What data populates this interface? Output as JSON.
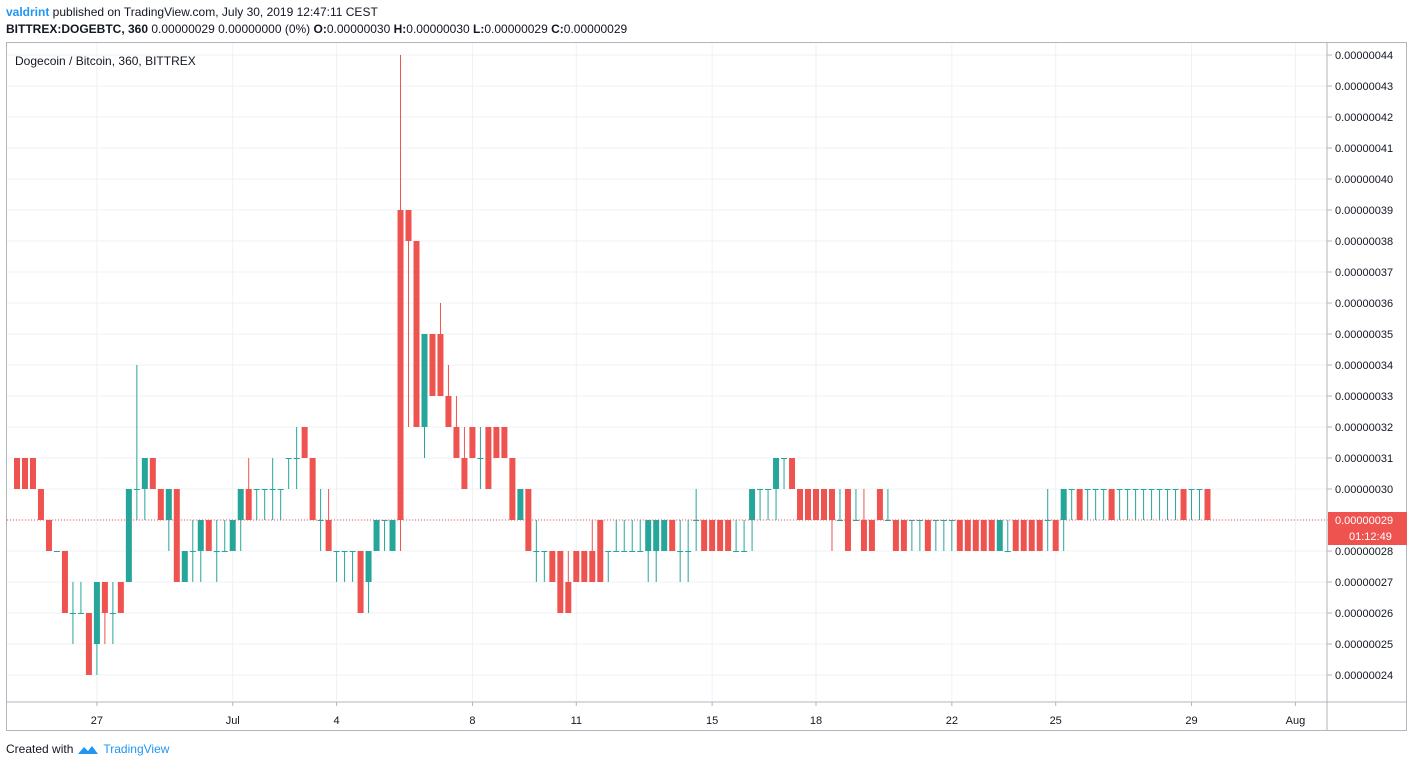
{
  "header": {
    "author": "valdrint",
    "published_text": " published on TradingView.com, July 30, 2019 12:47:11 CEST",
    "symbol": "BITTREX:DOGEBTC, 360",
    "quote_text": "0.00000029 0.00000000 (0%)",
    "open_label": "O:",
    "open": "0.00000030",
    "high_label": "H:",
    "high": "0.00000030",
    "low_label": "L:",
    "low": "0.00000029",
    "close_label": "C:",
    "close": "0.00000029"
  },
  "footer": {
    "created_with": "Created with",
    "brand": "TradingView"
  },
  "colors": {
    "up": "#26a69a",
    "down": "#ef5350",
    "grid": "#eef1f5",
    "axis_text": "#131722",
    "last_price": "#ef5350"
  },
  "chart_data": {
    "type": "candlestick",
    "title": "Dogecoin / Bitcoin, 360, BITTREX",
    "y_unit_scale": 1e-08,
    "ylim": [
      23.2,
      44.5
    ],
    "y_ticks": [
      24,
      25,
      26,
      27,
      28,
      29,
      30,
      31,
      32,
      33,
      34,
      35,
      36,
      37,
      38,
      39,
      40,
      41,
      42,
      43,
      44
    ],
    "y_tick_labels": [
      "0.00000024",
      "0.00000025",
      "0.00000026",
      "0.00000027",
      "0.00000028",
      "0.00000029",
      "0.00000030",
      "0.00000031",
      "0.00000032",
      "0.00000033",
      "0.00000034",
      "0.00000035",
      "0.00000036",
      "0.00000037",
      "0.00000038",
      "0.00000039",
      "0.00000040",
      "0.00000041",
      "0.00000042",
      "0.00000043",
      "0.00000044"
    ],
    "x_tick_labels": [
      "27",
      "Jul",
      "4",
      "8",
      "11",
      "15",
      "18",
      "22",
      "25",
      "29",
      "Aug"
    ],
    "x_tick_index": [
      10,
      27,
      40,
      57,
      70,
      87,
      100,
      117,
      130,
      147,
      160
    ],
    "candles": [
      [
        31,
        31,
        30,
        30
      ],
      [
        31,
        31,
        30,
        30
      ],
      [
        31,
        31,
        30,
        30
      ],
      [
        30,
        30,
        29,
        29
      ],
      [
        29,
        29,
        28,
        28
      ],
      [
        28,
        28,
        28,
        28
      ],
      [
        28,
        28,
        26,
        26
      ],
      [
        26,
        27,
        25,
        26
      ],
      [
        26,
        27,
        26,
        26
      ],
      [
        26,
        26,
        24,
        24
      ],
      [
        25,
        27,
        24,
        27
      ],
      [
        27,
        27,
        25,
        26
      ],
      [
        26,
        27,
        25,
        26
      ],
      [
        27,
        27,
        26,
        26
      ],
      [
        27,
        30,
        27,
        30
      ],
      [
        30,
        34,
        29,
        30
      ],
      [
        30,
        31,
        29,
        31
      ],
      [
        31,
        31,
        30,
        30
      ],
      [
        30,
        30,
        29,
        29
      ],
      [
        29,
        30,
        28,
        30
      ],
      [
        30,
        30,
        27,
        27
      ],
      [
        27,
        28,
        27,
        28
      ],
      [
        28,
        29,
        27,
        28
      ],
      [
        28,
        29,
        27,
        29
      ],
      [
        29,
        29,
        28,
        28
      ],
      [
        28,
        29,
        27,
        28
      ],
      [
        28,
        29,
        28,
        28
      ],
      [
        28,
        29,
        28,
        29
      ],
      [
        29,
        30,
        28,
        30
      ],
      [
        30,
        31,
        29,
        29
      ],
      [
        30,
        30,
        29,
        30
      ],
      [
        30,
        30,
        29,
        30
      ],
      [
        30,
        31,
        29,
        30
      ],
      [
        30,
        30,
        29,
        30
      ],
      [
        31,
        31,
        30,
        31
      ],
      [
        31,
        32,
        30,
        31
      ],
      [
        32,
        32,
        31,
        31
      ],
      [
        31,
        31,
        29,
        29
      ],
      [
        29,
        30,
        28,
        29
      ],
      [
        29,
        30,
        28,
        28
      ],
      [
        28,
        28,
        27,
        28
      ],
      [
        28,
        28,
        27,
        28
      ],
      [
        28,
        28,
        27,
        28
      ],
      [
        28,
        28,
        26,
        26
      ],
      [
        27,
        28,
        26,
        28
      ],
      [
        28,
        29,
        28,
        29
      ],
      [
        29,
        29,
        28,
        29
      ],
      [
        28,
        29,
        28,
        29
      ],
      [
        39,
        44,
        28,
        29
      ],
      [
        39,
        39,
        32,
        38
      ],
      [
        38,
        38,
        32,
        32
      ],
      [
        32,
        35,
        31,
        35
      ],
      [
        35,
        35,
        33,
        33
      ],
      [
        35,
        36,
        33,
        33
      ],
      [
        33,
        34,
        32,
        32
      ],
      [
        32,
        33,
        31,
        31
      ],
      [
        31,
        32,
        30,
        30
      ],
      [
        32,
        32,
        31,
        31
      ],
      [
        31,
        32,
        30,
        31
      ],
      [
        32,
        32,
        30,
        30
      ],
      [
        32,
        32,
        31,
        31
      ],
      [
        32,
        32,
        31,
        31
      ],
      [
        31,
        31,
        29,
        29
      ],
      [
        29,
        30,
        29,
        30
      ],
      [
        30,
        30,
        28,
        28
      ],
      [
        28,
        29,
        27,
        28
      ],
      [
        28,
        28,
        27,
        28
      ],
      [
        28,
        28,
        27,
        27
      ],
      [
        28,
        28,
        26,
        26
      ],
      [
        27,
        28,
        26,
        26
      ],
      [
        28,
        28,
        27,
        27
      ],
      [
        28,
        28,
        27,
        27
      ],
      [
        28,
        29,
        27,
        27
      ],
      [
        29,
        29,
        27,
        27
      ],
      [
        28,
        28,
        27,
        28
      ],
      [
        28,
        29,
        28,
        28
      ],
      [
        28,
        29,
        28,
        28
      ],
      [
        28,
        29,
        28,
        28
      ],
      [
        28,
        29,
        28,
        28
      ],
      [
        28,
        29,
        27,
        29
      ],
      [
        28,
        29,
        27,
        29
      ],
      [
        28,
        29,
        28,
        29
      ],
      [
        29,
        29,
        28,
        28
      ],
      [
        28,
        29,
        27,
        28
      ],
      [
        28,
        29,
        27,
        28
      ],
      [
        29,
        30,
        28,
        29
      ],
      [
        29,
        29,
        28,
        28
      ],
      [
        29,
        29,
        28,
        28
      ],
      [
        29,
        29,
        28,
        28
      ],
      [
        29,
        29,
        28,
        28
      ],
      [
        28,
        29,
        28,
        28
      ],
      [
        28,
        29,
        28,
        28
      ],
      [
        29,
        30,
        28,
        30
      ],
      [
        30,
        30,
        29,
        30
      ],
      [
        30,
        30,
        29,
        30
      ],
      [
        30,
        31,
        29,
        31
      ],
      [
        31,
        31,
        30,
        31
      ],
      [
        31,
        31,
        30,
        30
      ],
      [
        30,
        30,
        29,
        29
      ],
      [
        30,
        30,
        29,
        29
      ],
      [
        30,
        30,
        29,
        29
      ],
      [
        30,
        30,
        29,
        29
      ],
      [
        30,
        30,
        28,
        29
      ],
      [
        29,
        30,
        29,
        29
      ],
      [
        30,
        30,
        28,
        28
      ],
      [
        29,
        30,
        29,
        29
      ],
      [
        29,
        30,
        28,
        28
      ],
      [
        29,
        29,
        28,
        28
      ],
      [
        30,
        30,
        29,
        29
      ],
      [
        29,
        30,
        29,
        29
      ],
      [
        29,
        29,
        28,
        28
      ],
      [
        29,
        29,
        28,
        28
      ],
      [
        29,
        29,
        28,
        29
      ],
      [
        29,
        29,
        28,
        29
      ],
      [
        29,
        29,
        28,
        28
      ],
      [
        29,
        29,
        28,
        29
      ],
      [
        29,
        29,
        28,
        29
      ],
      [
        29,
        29,
        28,
        29
      ],
      [
        29,
        29,
        28,
        28
      ],
      [
        29,
        29,
        28,
        28
      ],
      [
        29,
        29,
        28,
        28
      ],
      [
        29,
        29,
        28,
        28
      ],
      [
        29,
        29,
        28,
        28
      ],
      [
        28,
        29,
        28,
        29
      ],
      [
        28,
        29,
        28,
        28
      ],
      [
        29,
        29,
        28,
        28
      ],
      [
        29,
        29,
        28,
        28
      ],
      [
        29,
        29,
        28,
        28
      ],
      [
        29,
        29,
        28,
        28
      ],
      [
        29,
        30,
        28,
        29
      ],
      [
        29,
        29,
        28,
        28
      ],
      [
        29,
        30,
        28,
        30
      ],
      [
        30,
        30,
        29,
        30
      ],
      [
        30,
        30,
        29,
        29
      ],
      [
        30,
        30,
        29,
        30
      ],
      [
        30,
        30,
        29,
        30
      ],
      [
        30,
        30,
        29,
        30
      ],
      [
        30,
        30,
        29,
        29
      ],
      [
        30,
        30,
        29,
        30
      ],
      [
        30,
        30,
        29,
        30
      ],
      [
        30,
        30,
        29,
        30
      ],
      [
        30,
        30,
        29,
        30
      ],
      [
        30,
        30,
        29,
        30
      ],
      [
        30,
        30,
        29,
        30
      ],
      [
        30,
        30,
        29,
        30
      ],
      [
        30,
        30,
        29,
        30
      ],
      [
        30,
        30,
        29,
        29
      ],
      [
        30,
        30,
        29,
        30
      ],
      [
        30,
        30,
        29,
        30
      ],
      [
        30,
        30,
        29,
        29
      ]
    ],
    "last_price_label": "0.00000029",
    "countdown_label": "01:12:49"
  }
}
